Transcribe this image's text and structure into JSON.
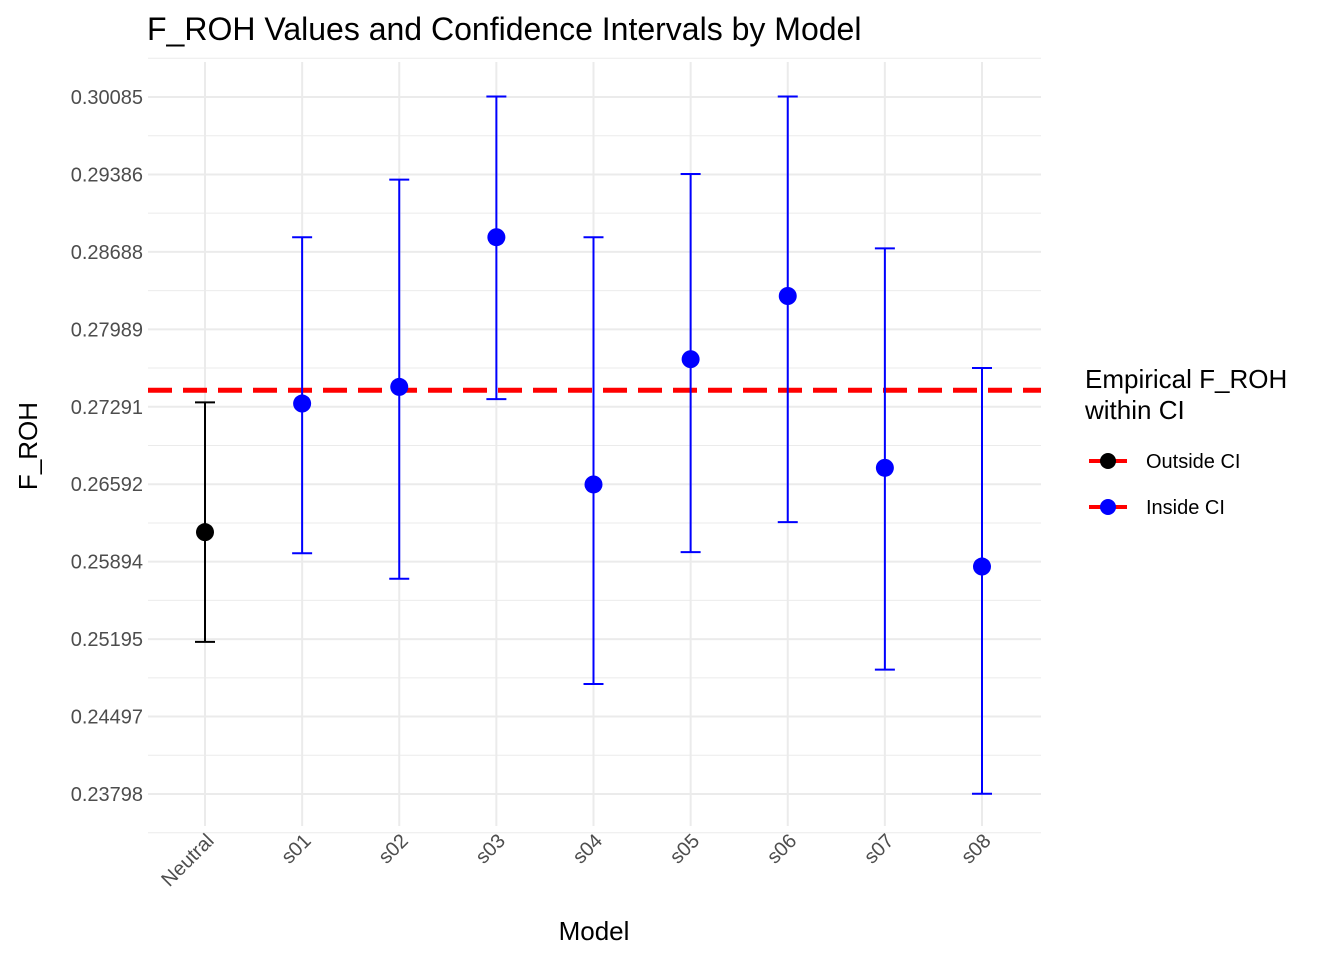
{
  "chart_data": {
    "type": "scatter",
    "title": "F_ROH Values and Confidence Intervals by Model",
    "xlabel": "Model",
    "ylabel": "F_ROH",
    "categories": [
      "Neutral",
      "s01",
      "s02",
      "s03",
      "s04",
      "s05",
      "s06",
      "s07",
      "s08"
    ],
    "points": [
      {
        "model": "Neutral",
        "value": 0.2616,
        "ci_low": 0.2517,
        "ci_high": 0.2733,
        "group": "Outside CI"
      },
      {
        "model": "s01",
        "value": 0.2732,
        "ci_low": 0.2597,
        "ci_high": 0.2882,
        "group": "Inside CI"
      },
      {
        "model": "s02",
        "value": 0.2747,
        "ci_low": 0.2574,
        "ci_high": 0.2934,
        "group": "Inside CI"
      },
      {
        "model": "s03",
        "value": 0.2882,
        "ci_low": 0.2736,
        "ci_high": 0.3009,
        "group": "Inside CI"
      },
      {
        "model": "s04",
        "value": 0.2659,
        "ci_low": 0.2479,
        "ci_high": 0.2882,
        "group": "Inside CI"
      },
      {
        "model": "s05",
        "value": 0.2772,
        "ci_low": 0.2598,
        "ci_high": 0.2939,
        "group": "Inside CI"
      },
      {
        "model": "s06",
        "value": 0.2829,
        "ci_low": 0.2625,
        "ci_high": 0.3009,
        "group": "Inside CI"
      },
      {
        "model": "s07",
        "value": 0.2674,
        "ci_low": 0.2492,
        "ci_high": 0.2872,
        "group": "Inside CI"
      },
      {
        "model": "s08",
        "value": 0.2585,
        "ci_low": 0.238,
        "ci_high": 0.2764,
        "group": "Inside CI"
      }
    ],
    "reference_line": {
      "value": 0.2744,
      "style": "dashed",
      "color": "#ff0000"
    },
    "yticks": [
      0.23798,
      0.24497,
      0.25195,
      0.25894,
      0.26592,
      0.27291,
      0.27989,
      0.28688,
      0.29386,
      0.30085
    ],
    "ytick_labels": [
      "0.23798",
      "0.24497",
      "0.25195",
      "0.25894",
      "0.26592",
      "0.27291",
      "0.27989",
      "0.28688",
      "0.29386",
      "0.30085"
    ],
    "ylim": [
      0.2352,
      0.304
    ],
    "grid": true,
    "legend": {
      "title_lines": [
        "Empirical F_ROH",
        "within CI"
      ],
      "placement": "right",
      "entries": [
        {
          "label": "Outside CI",
          "color": "#000000"
        },
        {
          "label": "Inside CI",
          "color": "#0000ff"
        }
      ]
    },
    "colors": {
      "Outside CI": "#000000",
      "Inside CI": "#0000ff",
      "grid": "#ebebeb"
    }
  }
}
